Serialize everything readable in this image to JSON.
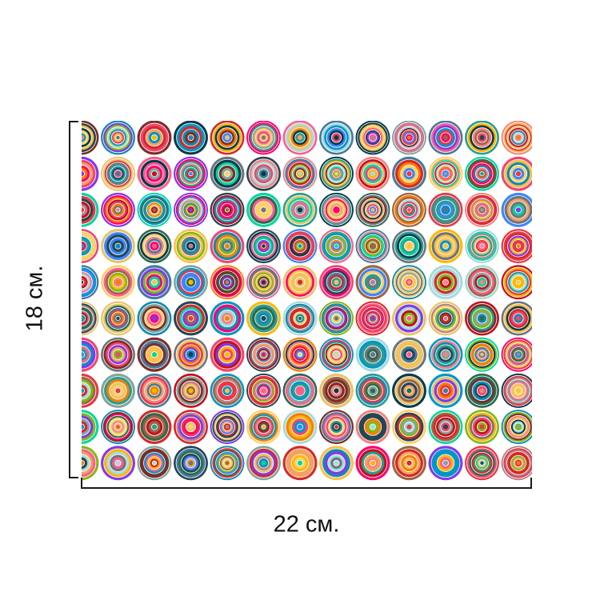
{
  "dimensions": {
    "width_label": "22 см.",
    "height_label": "18 см."
  },
  "pattern": {
    "description_name": "concentric-circles-pattern",
    "palette": [
      "#e63946",
      "#f4a261",
      "#2a9d8f",
      "#264653",
      "#e9c46a",
      "#d62828",
      "#f77f00",
      "#fcbf49",
      "#8338ec",
      "#3a86ff",
      "#ff006e",
      "#06d6a0",
      "#118ab2",
      "#073b4c",
      "#ef476f",
      "#ffd166",
      "#7b2d26",
      "#9c6644",
      "#6c757d",
      "#a8dadc",
      "#457b9d",
      "#c1121f",
      "#ff5d8f",
      "#80b918",
      "#2d6a4f",
      "#b5838d",
      "#f28482",
      "#84a59d",
      "#0096c7",
      "#ffb703"
    ]
  }
}
